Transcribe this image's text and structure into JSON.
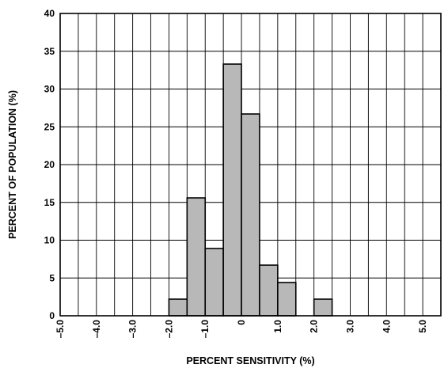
{
  "chart_data": {
    "type": "bar",
    "title": "",
    "xlabel": "PERCENT SENSITIVITY (%)",
    "ylabel": "PERCENT OF POPULATION (%)",
    "xlim": [
      -5.0,
      5.5
    ],
    "ylim": [
      0,
      40
    ],
    "grid": true,
    "x_ticks": [
      "–5.0",
      "–4.0",
      "–3.0",
      "–2.0",
      "–1.0",
      "0",
      "1.0",
      "2.0",
      "3.0",
      "4.0",
      "5.0"
    ],
    "y_ticks": [
      "0",
      "5",
      "10",
      "15",
      "20",
      "25",
      "30",
      "35",
      "40"
    ],
    "bar_color": "#b8b8b8",
    "bins": [
      {
        "start": -2.0,
        "end": -1.5,
        "value": 2.2
      },
      {
        "start": -1.5,
        "end": -1.0,
        "value": 15.6
      },
      {
        "start": -1.0,
        "end": -0.5,
        "value": 8.9
      },
      {
        "start": -0.5,
        "end": 0.0,
        "value": 33.3
      },
      {
        "start": 0.0,
        "end": 0.5,
        "value": 26.7
      },
      {
        "start": 0.5,
        "end": 1.0,
        "value": 6.7
      },
      {
        "start": 1.0,
        "end": 1.5,
        "value": 4.4
      },
      {
        "start": 2.0,
        "end": 2.5,
        "value": 2.2
      }
    ]
  }
}
